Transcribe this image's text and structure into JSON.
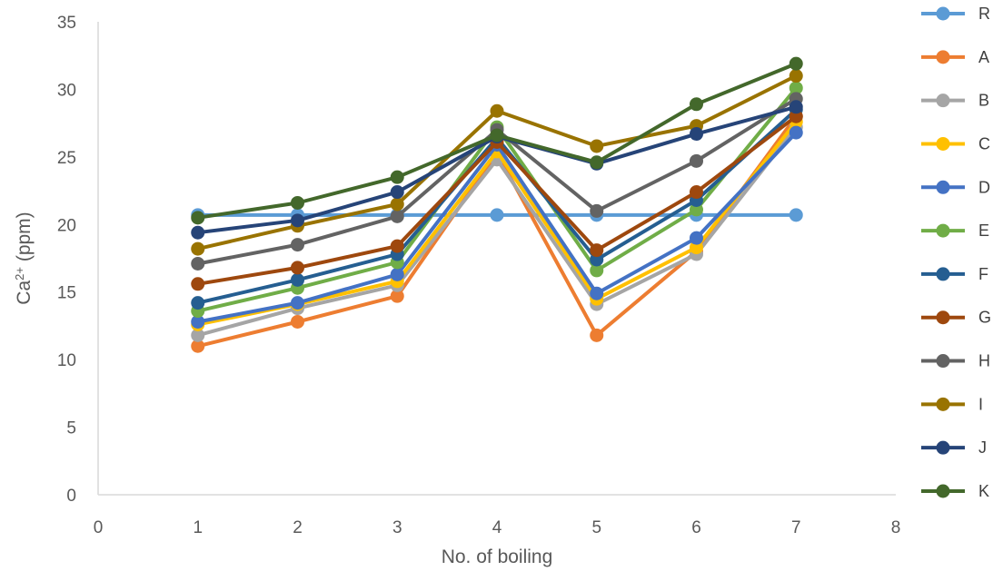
{
  "chart_data": {
    "type": "line",
    "xlabel": "No. of boiling",
    "ylabel": {
      "base": "Ca",
      "sup": "2+",
      "rest": " (ppm)"
    },
    "xlim": [
      0,
      8
    ],
    "ylim": [
      0,
      35
    ],
    "xticks": [
      0,
      1,
      2,
      3,
      4,
      5,
      6,
      7,
      8
    ],
    "yticks": [
      0,
      5,
      10,
      15,
      20,
      25,
      30,
      35
    ],
    "grid": false,
    "legend_position": "right",
    "series": [
      {
        "name": "R",
        "color": "#5B9BD5",
        "x": [
          1,
          2,
          3,
          4,
          5,
          6,
          7
        ],
        "y": [
          20.7,
          20.7,
          20.7,
          20.7,
          20.7,
          20.7,
          20.7
        ]
      },
      {
        "name": "A",
        "color": "#ED7D31",
        "x": [
          1,
          2,
          3,
          4,
          5,
          6,
          7
        ],
        "y": [
          11.0,
          12.8,
          14.7,
          25.3,
          11.8,
          18.0,
          28.0
        ]
      },
      {
        "name": "B",
        "color": "#A5A5A5",
        "x": [
          1,
          2,
          3,
          4,
          5,
          6,
          7
        ],
        "y": [
          11.8,
          13.8,
          15.5,
          24.8,
          14.1,
          17.8,
          27.2
        ]
      },
      {
        "name": "C",
        "color": "#FFC000",
        "x": [
          1,
          2,
          3,
          4,
          5,
          6,
          7
        ],
        "y": [
          12.6,
          14.1,
          15.8,
          25.4,
          14.5,
          18.3,
          27.6
        ]
      },
      {
        "name": "D",
        "color": "#4472C4",
        "x": [
          1,
          2,
          3,
          4,
          5,
          6,
          7
        ],
        "y": [
          12.8,
          14.2,
          16.3,
          25.9,
          14.9,
          19.0,
          26.8
        ]
      },
      {
        "name": "E",
        "color": "#70AD47",
        "x": [
          1,
          2,
          3,
          4,
          5,
          6,
          7
        ],
        "y": [
          13.6,
          15.3,
          17.2,
          27.2,
          16.6,
          21.1,
          30.1
        ]
      },
      {
        "name": "F",
        "color": "#255E91",
        "x": [
          1,
          2,
          3,
          4,
          5,
          6,
          7
        ],
        "y": [
          14.2,
          15.9,
          17.8,
          26.4,
          17.4,
          21.8,
          28.5
        ]
      },
      {
        "name": "G",
        "color": "#9E480E",
        "x": [
          1,
          2,
          3,
          4,
          5,
          6,
          7
        ],
        "y": [
          15.6,
          16.8,
          18.4,
          26.1,
          18.1,
          22.4,
          28.0
        ]
      },
      {
        "name": "H",
        "color": "#636363",
        "x": [
          1,
          2,
          3,
          4,
          5,
          6,
          7
        ],
        "y": [
          17.1,
          18.5,
          20.6,
          27.0,
          21.0,
          24.7,
          29.3
        ]
      },
      {
        "name": "I",
        "color": "#997300",
        "x": [
          1,
          2,
          3,
          4,
          5,
          6,
          7
        ],
        "y": [
          18.2,
          19.9,
          21.5,
          28.4,
          25.8,
          27.3,
          31.0
        ]
      },
      {
        "name": "J",
        "color": "#264478",
        "x": [
          1,
          2,
          3,
          4,
          5,
          6,
          7
        ],
        "y": [
          19.4,
          20.3,
          22.4,
          26.5,
          24.5,
          26.7,
          28.7
        ]
      },
      {
        "name": "K",
        "color": "#43682B",
        "x": [
          1,
          2,
          3,
          4,
          5,
          6,
          7
        ],
        "y": [
          20.5,
          21.6,
          23.5,
          26.6,
          24.6,
          28.9,
          31.9
        ]
      }
    ]
  }
}
